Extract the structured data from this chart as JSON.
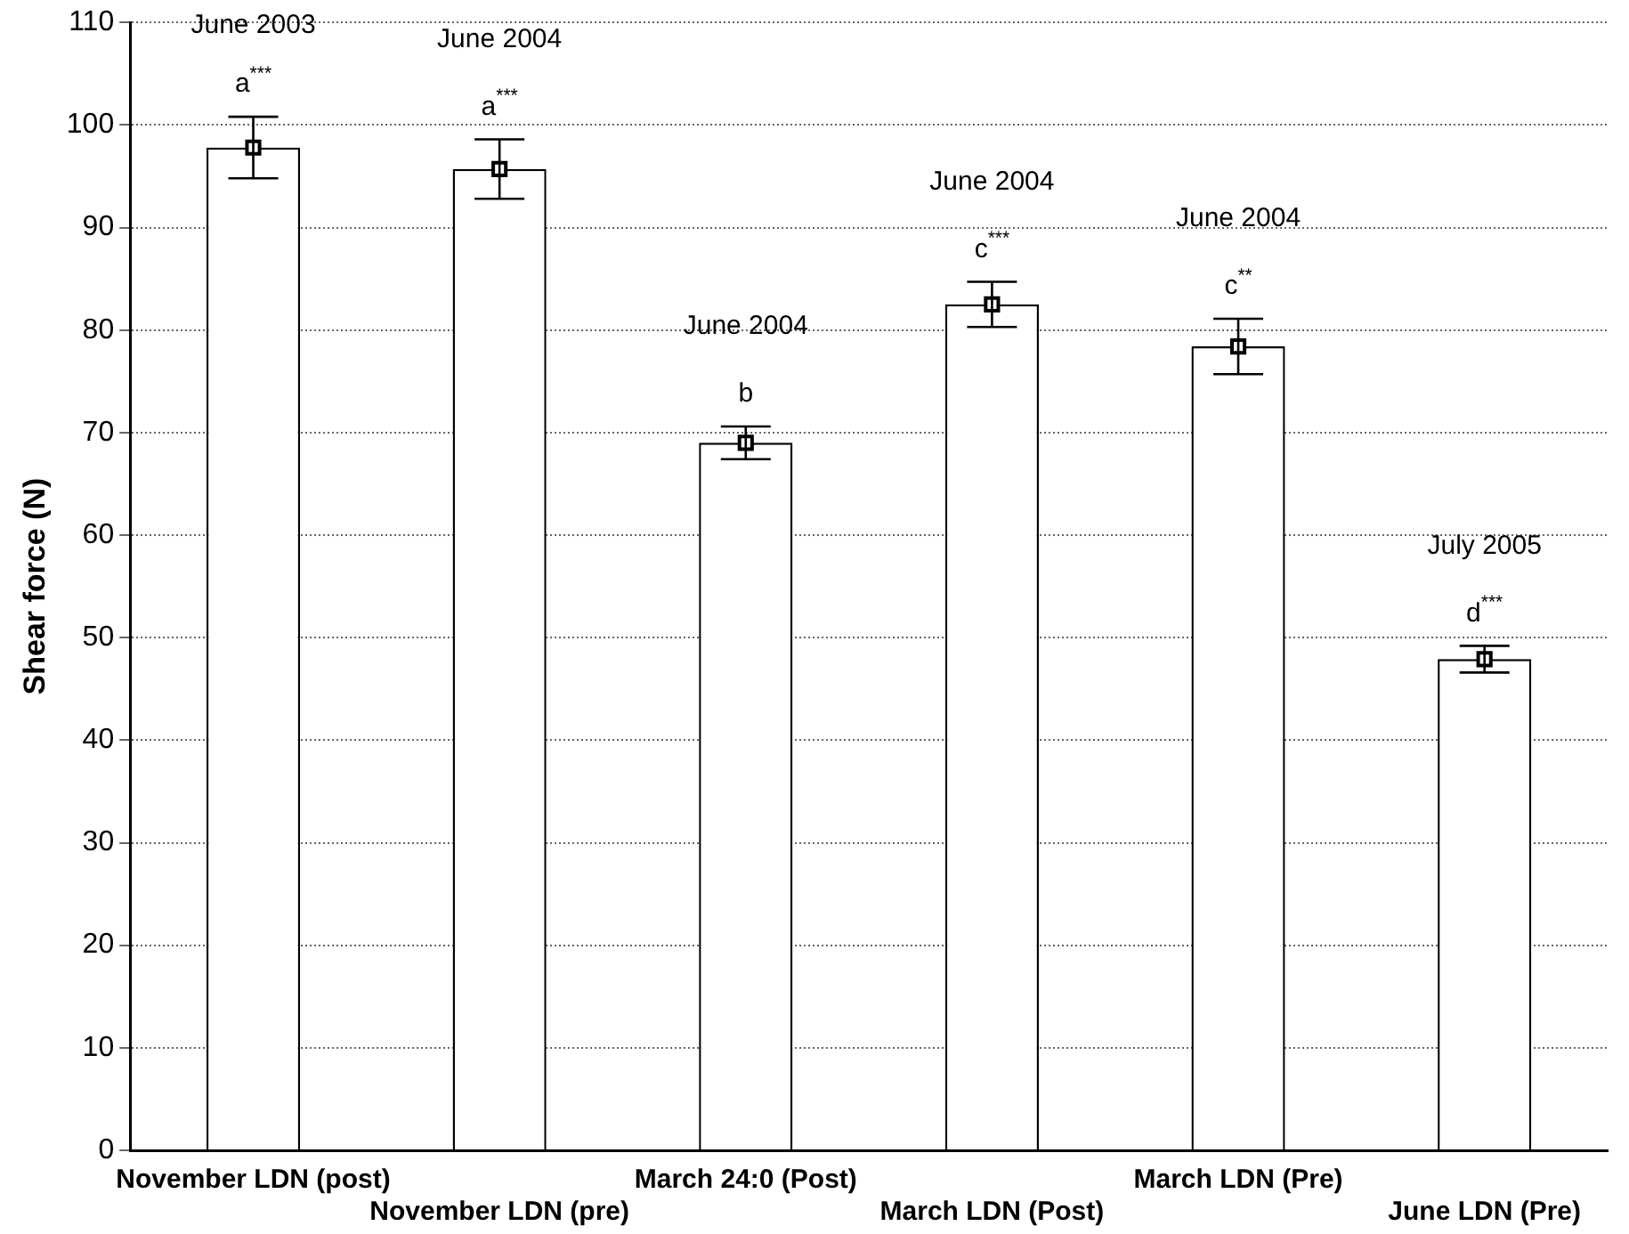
{
  "chart_data": {
    "type": "bar",
    "ylabel": "Shear force (N)",
    "categories": [
      "November LDN (post)",
      "November LDN (pre)",
      "March 24:0 (Post)",
      "March LDN (Post)",
      "March LDN (Pre)",
      "June LDN (Pre)"
    ],
    "series": [
      {
        "color": "#ffffff",
        "values": [
          97.8,
          95.7,
          69.0,
          82.5,
          78.4,
          47.9
        ],
        "errors": [
          3.0,
          2.9,
          1.6,
          2.2,
          2.7,
          1.3
        ]
      },
      {
        "type": "scatter",
        "marker": "square",
        "color": "#000000",
        "x": [
          "November LDN (post)",
          "November LDN (pre)",
          "March 24:0 (Post)",
          "March LDN (Post)",
          "March LDN (Pre)",
          "June LDN (Pre)"
        ],
        "values": [
          97.8,
          95.7,
          69.0,
          82.5,
          78.4,
          47.9
        ]
      }
    ],
    "ylim": [
      0,
      110
    ],
    "yticks": [
      0,
      10,
      20,
      30,
      40,
      50,
      60,
      70,
      80,
      90,
      100,
      110
    ],
    "grid": "y",
    "legend": false,
    "annotations": [
      "June 2003",
      "a$^{***}$",
      "June 2004",
      "a$^{***}$",
      "June 2004",
      "b",
      "June 2004",
      "c$^{***}$",
      "June 2004",
      "c$^{**}$",
      "July 2005",
      "d$^{***}$"
    ]
  }
}
